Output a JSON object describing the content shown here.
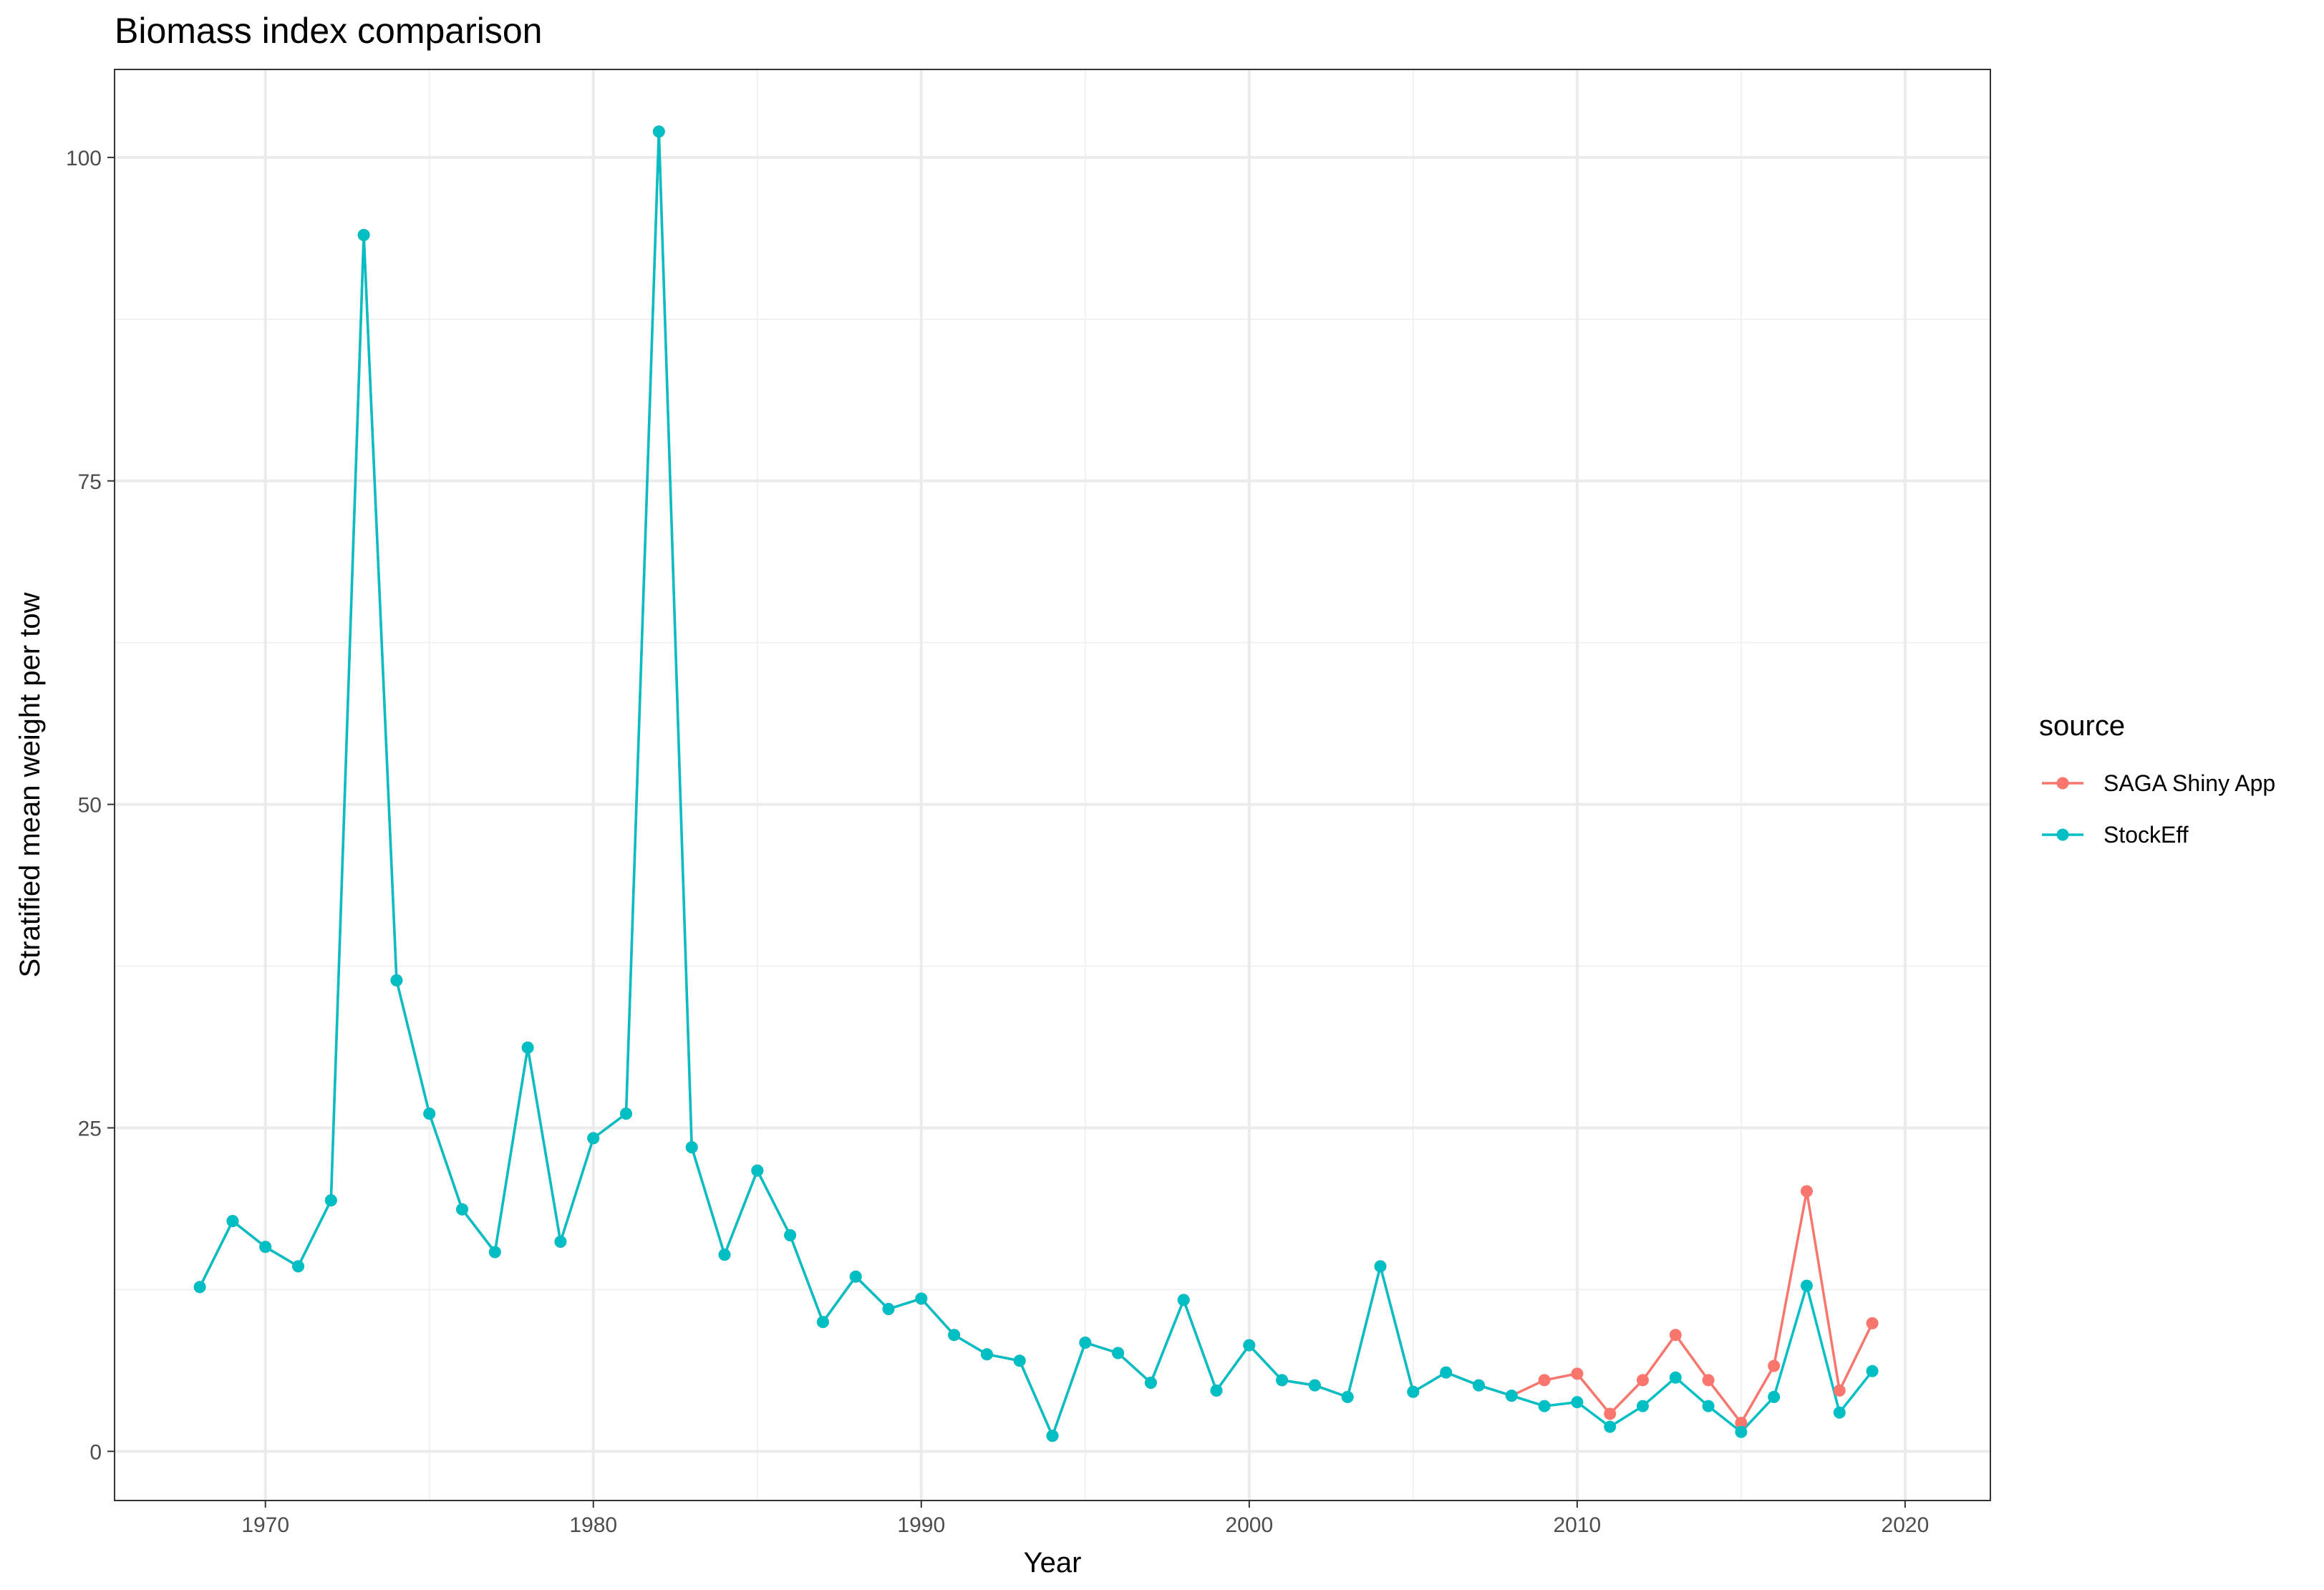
{
  "chart_data": {
    "type": "line",
    "title": "Biomass index comparison",
    "xlabel": "Year",
    "ylabel": "Stratified mean weight per tow",
    "xlim": [
      1965.4,
      2022.6
    ],
    "ylim": [
      -3.8,
      106.8
    ],
    "x_ticks": [
      1970,
      1980,
      1990,
      2000,
      2010,
      2020
    ],
    "y_ticks": [
      0,
      25,
      50,
      75,
      100
    ],
    "grid": true,
    "legend": {
      "title": "source",
      "position": "right"
    },
    "series": [
      {
        "name": "SAGA Shiny App",
        "color": "#F8766D",
        "points": [
          [
            1968,
            12.7
          ],
          [
            1969,
            17.8
          ],
          [
            1970,
            15.8
          ],
          [
            1971,
            14.3
          ],
          [
            1972,
            19.4
          ],
          [
            1973,
            94.0
          ],
          [
            1974,
            36.4
          ],
          [
            1975,
            26.1
          ],
          [
            1976,
            18.7
          ],
          [
            1977,
            15.4
          ],
          [
            1978,
            31.2
          ],
          [
            1979,
            16.2
          ],
          [
            1980,
            24.2
          ],
          [
            1981,
            26.1
          ],
          [
            1982,
            102.0
          ],
          [
            1983,
            23.5
          ],
          [
            1984,
            15.2
          ],
          [
            1985,
            21.7
          ],
          [
            1986,
            16.7
          ],
          [
            1987,
            10.0
          ],
          [
            1988,
            13.5
          ],
          [
            1989,
            11.0
          ],
          [
            1990,
            11.8
          ],
          [
            1991,
            9.0
          ],
          [
            1992,
            7.5
          ],
          [
            1993,
            7.0
          ],
          [
            1994,
            1.2
          ],
          [
            1995,
            8.4
          ],
          [
            1996,
            7.6
          ],
          [
            1997,
            5.3
          ],
          [
            1998,
            11.7
          ],
          [
            1999,
            4.7
          ],
          [
            2000,
            8.2
          ],
          [
            2001,
            5.5
          ],
          [
            2002,
            5.1
          ],
          [
            2003,
            4.2
          ],
          [
            2004,
            14.3
          ],
          [
            2005,
            4.6
          ],
          [
            2006,
            6.1
          ],
          [
            2007,
            5.1
          ],
          [
            2008,
            4.3
          ],
          [
            2009,
            5.5
          ],
          [
            2010,
            6.0
          ],
          [
            2011,
            2.9
          ],
          [
            2012,
            5.5
          ],
          [
            2013,
            9.0
          ],
          [
            2014,
            5.5
          ],
          [
            2015,
            2.2
          ],
          [
            2016,
            6.6
          ],
          [
            2017,
            20.1
          ],
          [
            2018,
            4.7
          ],
          [
            2019,
            9.9
          ]
        ]
      },
      {
        "name": "StockEff",
        "color": "#00BFC4",
        "points": [
          [
            1968,
            12.7
          ],
          [
            1969,
            17.8
          ],
          [
            1970,
            15.8
          ],
          [
            1971,
            14.3
          ],
          [
            1972,
            19.4
          ],
          [
            1973,
            94.0
          ],
          [
            1974,
            36.4
          ],
          [
            1975,
            26.1
          ],
          [
            1976,
            18.7
          ],
          [
            1977,
            15.4
          ],
          [
            1978,
            31.2
          ],
          [
            1979,
            16.2
          ],
          [
            1980,
            24.2
          ],
          [
            1981,
            26.1
          ],
          [
            1982,
            102.0
          ],
          [
            1983,
            23.5
          ],
          [
            1984,
            15.2
          ],
          [
            1985,
            21.7
          ],
          [
            1986,
            16.7
          ],
          [
            1987,
            10.0
          ],
          [
            1988,
            13.5
          ],
          [
            1989,
            11.0
          ],
          [
            1990,
            11.8
          ],
          [
            1991,
            9.0
          ],
          [
            1992,
            7.5
          ],
          [
            1993,
            7.0
          ],
          [
            1994,
            1.2
          ],
          [
            1995,
            8.4
          ],
          [
            1996,
            7.6
          ],
          [
            1997,
            5.3
          ],
          [
            1998,
            11.7
          ],
          [
            1999,
            4.7
          ],
          [
            2000,
            8.2
          ],
          [
            2001,
            5.5
          ],
          [
            2002,
            5.1
          ],
          [
            2003,
            4.2
          ],
          [
            2004,
            14.3
          ],
          [
            2005,
            4.6
          ],
          [
            2006,
            6.1
          ],
          [
            2007,
            5.1
          ],
          [
            2008,
            4.3
          ],
          [
            2009,
            3.5
          ],
          [
            2010,
            3.8
          ],
          [
            2011,
            1.9
          ],
          [
            2012,
            3.5
          ],
          [
            2013,
            5.7
          ],
          [
            2014,
            3.5
          ],
          [
            2015,
            1.5
          ],
          [
            2016,
            4.2
          ],
          [
            2017,
            12.8
          ],
          [
            2018,
            3.0
          ],
          [
            2019,
            6.2
          ]
        ]
      }
    ]
  }
}
